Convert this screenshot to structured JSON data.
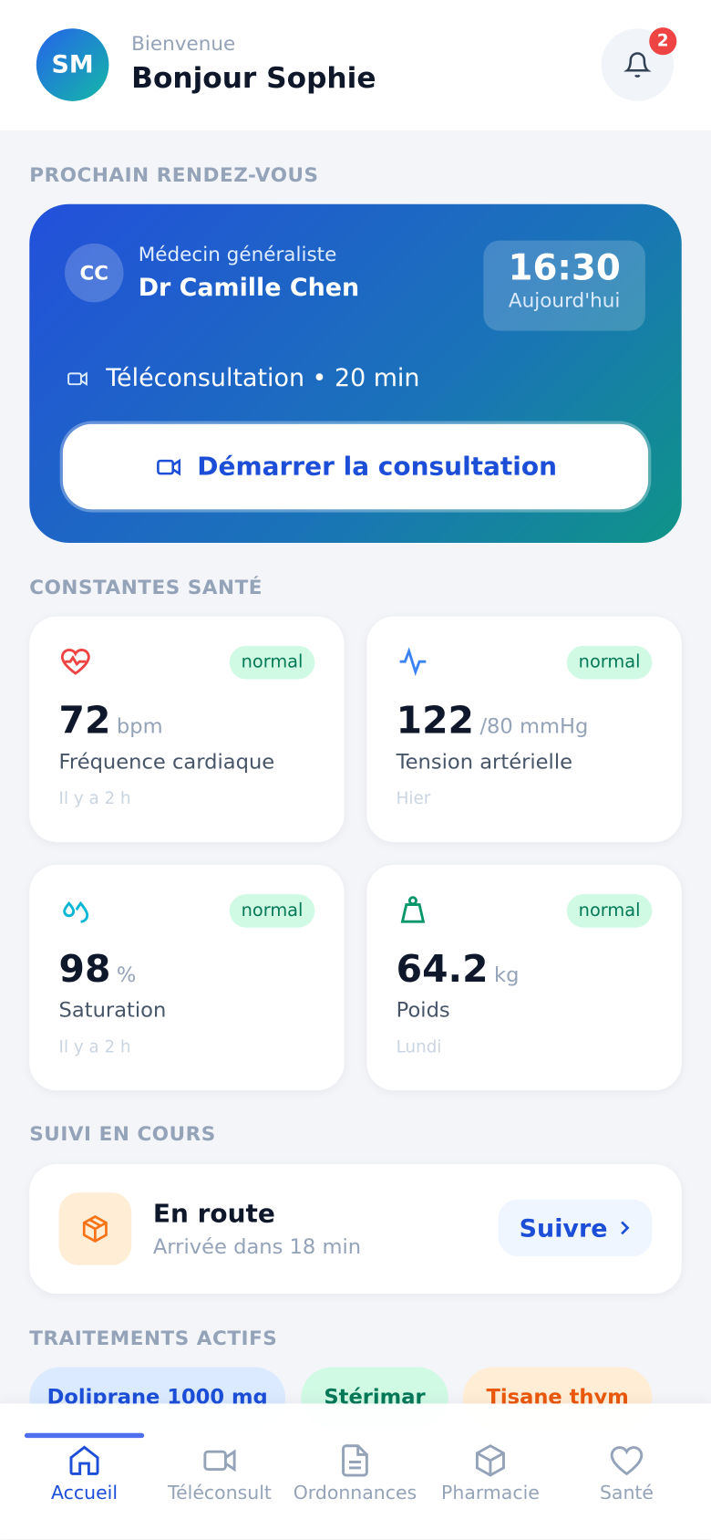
{
  "header": {
    "avatar": "SM",
    "greeting": "Bienvenue",
    "name": "Bonjour Sophie",
    "notifications": 2
  },
  "appointment": {
    "section": "PROCHAIN RENDEZ-VOUS",
    "initials": "CC",
    "specialty": "Médecin généraliste",
    "doctor": "Dr Camille Chen",
    "time": "16:30",
    "day": "Aujourd'hui",
    "mode": "Téléconsultation • 20 min",
    "button": "Démarrer la consultation"
  },
  "vitals": {
    "section": "CONSTANTES SANTÉ",
    "cards": [
      {
        "status": "normal",
        "value": 72,
        "unit": "bpm",
        "label": "Fréquence cardiaque",
        "when": "Il y a 2 h"
      },
      {
        "status": "normal",
        "value": 122,
        "unit": "/80 mmHg",
        "label": "Tension artérielle",
        "when": "Hier"
      },
      {
        "status": "normal",
        "value": 98,
        "unit": "%",
        "label": "Saturation",
        "when": "Il y a 2 h"
      },
      {
        "status": "normal",
        "value": 64.2,
        "unit": "kg",
        "label": "Poids",
        "when": "Lundi"
      }
    ]
  },
  "tracking": {
    "section": "SUIVI EN COURS",
    "title": "En route",
    "subtitle": "Arrivée dans 18 min",
    "button": "Suivre"
  },
  "treatments": {
    "section": "TRAITEMENTS ACTIFS",
    "items": [
      "Doliprane 1000 mg",
      "Stérimar",
      "Tisane thym"
    ]
  },
  "nav": [
    "Accueil",
    "Téléconsult",
    "Ordonnances",
    "Pharmacie",
    "Santé"
  ]
}
